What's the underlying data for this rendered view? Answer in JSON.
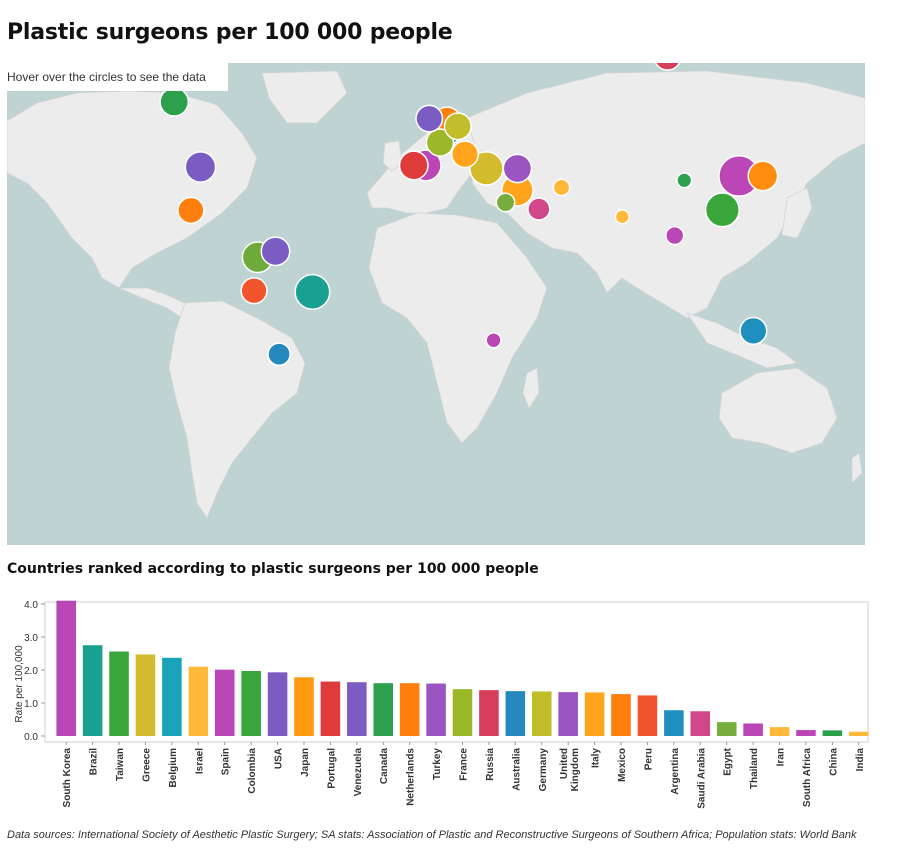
{
  "title": "Plastic surgeons per 100 000 people",
  "map": {
    "hover_note": "Hover over the circles to see the data",
    "bubbles": [
      {
        "country": "Canada",
        "lon": -109,
        "lat": 57,
        "value": 1.6,
        "color": "#2ca04c"
      },
      {
        "country": "USA",
        "lon": -98,
        "lat": 39,
        "value": 1.93,
        "color": "#7b5cc2"
      },
      {
        "country": "Mexico",
        "lon": -102,
        "lat": 23.5,
        "value": 1.27,
        "color": "#ff7f0e"
      },
      {
        "country": "Colombia",
        "lon": -74,
        "lat": 4.5,
        "value": 1.97,
        "color": "#6fab3a"
      },
      {
        "country": "Venezuela",
        "lon": -66.5,
        "lat": 7,
        "value": 1.63,
        "color": "#7b5cc2"
      },
      {
        "country": "Brazil",
        "lon": -51,
        "lat": -10,
        "value": 2.75,
        "color": "#1aa091"
      },
      {
        "country": "Peru",
        "lon": -75.5,
        "lat": -9.5,
        "value": 1.23,
        "color": "#f2542d"
      },
      {
        "country": "Argentina",
        "lon": -65,
        "lat": -34,
        "value": 0.78,
        "color": "#2589bd"
      },
      {
        "country": "Netherlands",
        "lon": 5.5,
        "lat": 52.3,
        "value": 1.6,
        "color": "#ff7f0e"
      },
      {
        "country": "United Kingdom",
        "lon": -2,
        "lat": 53,
        "value": 1.33,
        "color": "#7b5cc2"
      },
      {
        "country": "Germany",
        "lon": 10,
        "lat": 51,
        "value": 1.35,
        "color": "#c2bd2a"
      },
      {
        "country": "Belgium",
        "lon": 4.5,
        "lat": 50,
        "value": 2.37,
        "color": "#1aa2b8"
      },
      {
        "country": "France",
        "lon": 2.5,
        "lat": 46.5,
        "value": 1.42,
        "color": "#9ab82a"
      },
      {
        "country": "Italy",
        "lon": 13,
        "lat": 43,
        "value": 1.32,
        "color": "#ffa41b"
      },
      {
        "country": "Portugal",
        "lon": -8.5,
        "lat": 39.5,
        "value": 1.65,
        "color": "#e03b3b"
      },
      {
        "country": "Spain",
        "lon": -3.5,
        "lat": 39.5,
        "value": 2.01,
        "color": "#bb46b5"
      },
      {
        "country": "Greece",
        "lon": 22,
        "lat": 38.5,
        "value": 2.47,
        "color": "#d2bb2c"
      },
      {
        "country": "Turkey",
        "lon": 35,
        "lat": 38.5,
        "value": 1.59,
        "color": "#9a55c0"
      },
      {
        "country": "Israel",
        "lon": 35,
        "lat": 31,
        "value": 2.1,
        "color": "#ffa41b"
      },
      {
        "country": "Egypt",
        "lon": 30,
        "lat": 26.5,
        "value": 0.42,
        "color": "#77ad3c"
      },
      {
        "country": "Saudi Arabia",
        "lon": 44,
        "lat": 24,
        "value": 0.75,
        "color": "#d2478a"
      },
      {
        "country": "Iran",
        "lon": 53.5,
        "lat": 32,
        "value": 0.27,
        "color": "#ffb83a"
      },
      {
        "country": "Russia",
        "lon": 98,
        "lat": 66,
        "value": 1.39,
        "color": "#d63f5c"
      },
      {
        "country": "China",
        "lon": 105,
        "lat": 34.5,
        "value": 0.17,
        "color": "#2ca04c"
      },
      {
        "country": "India",
        "lon": 79,
        "lat": 21,
        "value": 0.13,
        "color": "#ffb83a"
      },
      {
        "country": "Thailand",
        "lon": 101,
        "lat": 13.5,
        "value": 0.38,
        "color": "#bb46b5"
      },
      {
        "country": "South Korea",
        "lon": 128,
        "lat": 36,
        "value": 4.1,
        "color": "#bb46b5"
      },
      {
        "country": "Japan",
        "lon": 138,
        "lat": 36,
        "value": 1.78,
        "color": "#ff8c0e"
      },
      {
        "country": "Taiwan",
        "lon": 121,
        "lat": 23.7,
        "value": 2.56,
        "color": "#3aa53a"
      },
      {
        "country": "Australia",
        "lon": 134,
        "lat": -25.5,
        "value": 1.36,
        "color": "#1f8fbd"
      },
      {
        "country": "South Africa",
        "lon": 25,
        "lat": -29,
        "value": 0.18,
        "color": "#bb46b5"
      }
    ]
  },
  "chart_data": {
    "type": "bar",
    "title": "Countries ranked according to plastic surgeons per 100 000 people",
    "ylabel": "Rate per 100,000",
    "ylim": [
      0,
      4.2
    ],
    "yticks": [
      "0.0",
      "1.0",
      "2.0",
      "3.0",
      "4.0"
    ],
    "categories": [
      "South Korea",
      "Brazil",
      "Taiwan",
      "Greece",
      "Belgium",
      "Israel",
      "Spain",
      "Colombia",
      "USA",
      "Japan",
      "Portugal",
      "Venezuela",
      "Canada",
      "Netherlands",
      "Turkey",
      "France",
      "Russia",
      "Australia",
      "Germany",
      "United Kingdom",
      "Italy",
      "Mexico",
      "Peru",
      "Argentina",
      "Saudi Arabia",
      "Egypt",
      "Thailand",
      "Iran",
      "South Africa",
      "China",
      "India"
    ],
    "values": [
      4.1,
      2.75,
      2.56,
      2.47,
      2.37,
      2.1,
      2.01,
      1.97,
      1.93,
      1.78,
      1.65,
      1.63,
      1.6,
      1.6,
      1.59,
      1.42,
      1.39,
      1.36,
      1.35,
      1.33,
      1.32,
      1.27,
      1.23,
      0.78,
      0.75,
      0.42,
      0.38,
      0.27,
      0.18,
      0.17,
      0.13
    ],
    "colors": [
      "#bb46b5",
      "#1aa091",
      "#3aa53a",
      "#d2bb2c",
      "#1aa2b8",
      "#ffb83a",
      "#bb46b5",
      "#3aa53a",
      "#7b5cc2",
      "#ff9a0e",
      "#e03b3b",
      "#7b5cc2",
      "#2ca04c",
      "#ff7f0e",
      "#9a55c0",
      "#9ab82a",
      "#d63f5c",
      "#2589bd",
      "#c2bd2a",
      "#9a55c0",
      "#ffa41b",
      "#ff7f0e",
      "#f2542d",
      "#1f8fbd",
      "#d2478a",
      "#77ad3c",
      "#bb46b5",
      "#ffb83a",
      "#bb46b5",
      "#2ca04c",
      "#ffb83a"
    ]
  },
  "source": "Data sources: International Society of Aesthetic Plastic Surgery; SA stats: Association of Plastic and Reconstructive Surgeons of Southern Africa; Population stats: World Bank"
}
